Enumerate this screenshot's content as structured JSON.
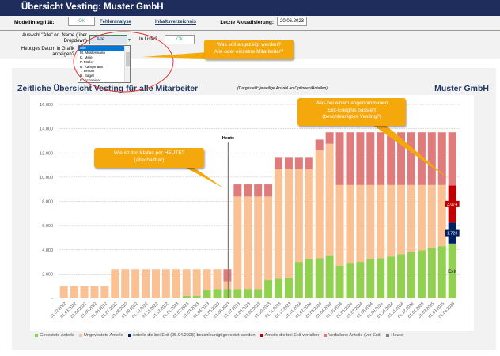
{
  "header": {
    "title": "Übersicht Vesting: Muster GmbH"
  },
  "toolbar": {
    "integrity_label": "Modellintegrität:",
    "integrity_value": "Ok",
    "error_link": "Fehleranalyse",
    "toc_link": "Inhaltsverzeichnis",
    "update_label": "Letzte Aktualisierung:",
    "update_value": "20.06.2023"
  },
  "selection": {
    "label": "Auswahl \"Alle\" od. Name (über Dropdown)",
    "value": "Alle",
    "in_list_label": "In Liste?",
    "in_list_value": "Ok",
    "today_label": "Heutiges Datum in Grafik anzeigen?",
    "options": [
      "Alle",
      "M. Mustermann",
      "K. Meier",
      "P. Müller",
      "R. Kampmann",
      "T. Breuer",
      "U. Sager",
      "E. Schneider"
    ]
  },
  "callouts": [
    "Was soll angezeigt werden?\nAlle oder einzelne Mitarbeiter?",
    "Wie ist der Status per HEUTE?\n(abschaltbar)",
    "Was bei einem angenommenen\nExit-Ereignis passiert\n(beschleunigtes Vesting?)"
  ],
  "chart_panel": {
    "title": "Zeitliche Übersicht Vesting für alle Mitarbeiter",
    "subtitle": "(Dargestellt: jeweilige Anzahl an Optionen/Anteilen)",
    "company": "Muster GmbH",
    "today_label": "Heute",
    "exit_label": "Exit"
  },
  "chart_data": {
    "type": "bar",
    "stacked": true,
    "ylim": [
      0,
      16000
    ],
    "grid": true,
    "legend": "bottom",
    "yticks": [
      "-",
      "2.000",
      "4.000",
      "6.000",
      "8.000",
      "10.000",
      "12.000",
      "14.000",
      "16.000"
    ],
    "categories": [
      "01.02.2022",
      "01.03.2022",
      "01.04.2022",
      "01.05.2022",
      "01.06.2022",
      "01.07.2022",
      "01.08.2022",
      "01.09.2022",
      "01.10.2022",
      "01.11.2022",
      "01.12.2022",
      "01.01.2023",
      "01.02.2023",
      "01.03.2023",
      "01.04.2023",
      "01.05.2023",
      "01.06.2023",
      "01.07.2023",
      "01.08.2023",
      "01.09.2023",
      "01.10.2023",
      "01.11.2023",
      "01.12.2023",
      "01.01.2024",
      "01.02.2024",
      "01.03.2024",
      "01.04.2024",
      "01.05.2024",
      "01.06.2024",
      "01.07.2024",
      "01.08.2024",
      "01.09.2024",
      "01.10.2024",
      "01.11.2024",
      "01.12.2024",
      "01.01.2025",
      "01.02.2025",
      "01.03.2025",
      "01.04.2025"
    ],
    "today_category": "01.06.2023",
    "series": [
      {
        "name": "Gevestete Anteile",
        "color": "#92d050",
        "values": [
          0,
          0,
          0,
          0,
          0,
          0,
          0,
          0,
          0,
          0,
          0,
          0,
          200,
          200,
          650,
          750,
          750,
          750,
          780,
          760,
          1500,
          1600,
          1700,
          3000,
          3200,
          3300,
          3550,
          2700,
          2870,
          3000,
          3200,
          3300,
          3450,
          3630,
          3800,
          3960,
          4170,
          4300,
          4520
        ]
      },
      {
        "name": "Anteile die bei Exit (05.04.2025) beschleunigt gevestet werden",
        "color": "#002060",
        "values": [
          0,
          0,
          0,
          0,
          0,
          0,
          0,
          0,
          0,
          0,
          0,
          0,
          0,
          0,
          0,
          0,
          0,
          0,
          0,
          0,
          0,
          0,
          0,
          0,
          0,
          0,
          0,
          0,
          0,
          0,
          0,
          0,
          0,
          0,
          0,
          0,
          0,
          0,
          1723
        ]
      },
      {
        "name": "Ungevestete Anteile",
        "color": "#f9c194",
        "values": [
          1000,
          1000,
          1000,
          1000,
          1000,
          2400,
          2400,
          2400,
          2400,
          2400,
          2400,
          2400,
          2200,
          2200,
          1750,
          1650,
          650,
          7650,
          7620,
          7640,
          6900,
          9050,
          8950,
          7650,
          7450,
          8900,
          9200,
          6650,
          6480,
          6350,
          6150,
          6050,
          5900,
          5720,
          5550,
          5390,
          5180,
          5050,
          0
        ]
      },
      {
        "name": "Anteile die bei Exit verfallen",
        "color": "#c00000",
        "values": [
          0,
          0,
          0,
          0,
          0,
          0,
          0,
          0,
          0,
          0,
          0,
          0,
          0,
          0,
          0,
          0,
          0,
          0,
          0,
          0,
          0,
          0,
          0,
          0,
          0,
          0,
          0,
          0,
          0,
          0,
          0,
          0,
          0,
          0,
          0,
          0,
          0,
          0,
          3074
        ]
      },
      {
        "name": "Verfallene Anteile (vor Exit)",
        "color": "#e07b7b",
        "values": [
          0,
          0,
          0,
          0,
          0,
          0,
          0,
          0,
          0,
          0,
          0,
          0,
          0,
          0,
          0,
          0,
          1000,
          1000,
          1000,
          1000,
          1000,
          950,
          950,
          950,
          950,
          900,
          950,
          4350,
          4350,
          4350,
          4350,
          4350,
          4350,
          4350,
          4350,
          4350,
          4350,
          4350,
          4383
        ]
      }
    ],
    "data_labels": {
      "exit_forfeited": "3.074",
      "exit_accelerated": "1.723"
    },
    "legend_entries": [
      "Gevestete Anteile",
      "Ungevestete Anteile",
      "Anteile die bei Exit (05.04.2025) beschleunigt gevestet werden",
      "Anteile die bei Exit verfallen",
      "Verfallene Anteile (vor Exit)",
      "Heute"
    ],
    "legend_colors": [
      "#92d050",
      "#f9c194",
      "#002060",
      "#c00000",
      "#e07b7b",
      "#7f7f7f"
    ]
  }
}
